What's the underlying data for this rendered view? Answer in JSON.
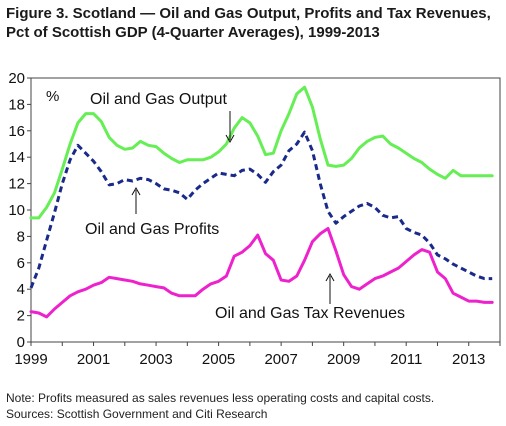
{
  "figure": {
    "title": "Figure 3. Scotland — Oil and Gas Output, Profits and Tax Revenues, Pct of Scottish GDP (4-Quarter Averages), 1999-2013",
    "note": "Note: Profits measured as sales revenues less operating costs and capital costs.",
    "sources": "Sources: Scottish Government and Citi Research"
  },
  "chart_data": {
    "type": "line",
    "ylabel": "%",
    "xlim": [
      1999,
      2014
    ],
    "ylim": [
      0,
      20
    ],
    "yticks": [
      0,
      2,
      4,
      6,
      8,
      10,
      12,
      14,
      16,
      18,
      20
    ],
    "xticks": [
      1999,
      2001,
      2003,
      2005,
      2007,
      2009,
      2011,
      2013
    ],
    "grid": false,
    "series": [
      {
        "name": "Oil and Gas Output",
        "color": "#66ee55",
        "style": "solid",
        "x": [
          1999.0,
          1999.25,
          1999.5,
          1999.75,
          2000.0,
          2000.25,
          2000.5,
          2000.75,
          2001.0,
          2001.25,
          2001.5,
          2001.75,
          2002.0,
          2002.25,
          2002.5,
          2002.75,
          2003.0,
          2003.25,
          2003.5,
          2003.75,
          2004.0,
          2004.25,
          2004.5,
          2004.75,
          2005.0,
          2005.25,
          2005.5,
          2005.75,
          2006.0,
          2006.25,
          2006.5,
          2006.75,
          2007.0,
          2007.25,
          2007.5,
          2007.75,
          2008.0,
          2008.25,
          2008.5,
          2008.75,
          2009.0,
          2009.25,
          2009.5,
          2009.75,
          2010.0,
          2010.25,
          2010.5,
          2010.75,
          2011.0,
          2011.25,
          2011.5,
          2011.75,
          2012.0,
          2012.25,
          2012.5,
          2012.75,
          2013.0,
          2013.25,
          2013.5,
          2013.75
        ],
        "values": [
          9.4,
          9.4,
          10.2,
          11.3,
          13.1,
          15.0,
          16.6,
          17.3,
          17.3,
          16.7,
          15.5,
          14.9,
          14.6,
          14.7,
          15.2,
          14.9,
          14.8,
          14.3,
          13.9,
          13.6,
          13.8,
          13.8,
          13.8,
          14.0,
          14.4,
          15.0,
          16.2,
          17.0,
          16.6,
          15.6,
          14.2,
          14.3,
          16.0,
          17.3,
          18.8,
          19.3,
          17.8,
          15.4,
          13.4,
          13.3,
          13.4,
          13.9,
          14.7,
          15.2,
          15.5,
          15.6,
          15.0,
          14.7,
          14.3,
          13.9,
          13.6,
          13.1,
          12.7,
          12.4,
          13.0,
          12.6,
          12.6,
          12.6,
          12.6,
          12.6
        ]
      },
      {
        "name": "Oil and Gas Profits",
        "color": "#1a2a8a",
        "style": "dashed",
        "x": [
          1999.0,
          1999.25,
          1999.5,
          1999.75,
          2000.0,
          2000.25,
          2000.5,
          2000.75,
          2001.0,
          2001.25,
          2001.5,
          2001.75,
          2002.0,
          2002.25,
          2002.5,
          2002.75,
          2003.0,
          2003.25,
          2003.5,
          2003.75,
          2004.0,
          2004.25,
          2004.5,
          2004.75,
          2005.0,
          2005.25,
          2005.5,
          2005.75,
          2006.0,
          2006.25,
          2006.5,
          2006.75,
          2007.0,
          2007.25,
          2007.5,
          2007.75,
          2008.0,
          2008.25,
          2008.5,
          2008.75,
          2009.0,
          2009.25,
          2009.5,
          2009.75,
          2010.0,
          2010.25,
          2010.5,
          2010.75,
          2011.0,
          2011.25,
          2011.5,
          2011.75,
          2012.0,
          2012.25,
          2012.5,
          2012.75,
          2013.0,
          2013.25,
          2013.5,
          2013.75
        ],
        "values": [
          4.1,
          5.6,
          7.7,
          9.8,
          12.0,
          13.8,
          14.9,
          14.3,
          13.7,
          12.9,
          11.9,
          12.0,
          12.3,
          12.2,
          12.4,
          12.3,
          12.0,
          11.6,
          11.5,
          11.3,
          10.8,
          11.5,
          12.0,
          12.4,
          12.8,
          12.7,
          12.6,
          13.0,
          13.1,
          12.7,
          12.1,
          12.9,
          13.4,
          14.5,
          15.0,
          15.9,
          14.5,
          12.0,
          9.9,
          9.0,
          9.5,
          9.9,
          10.3,
          10.5,
          10.2,
          9.6,
          9.4,
          9.5,
          8.6,
          8.3,
          8.1,
          7.5,
          6.6,
          6.3,
          5.9,
          5.6,
          5.3,
          5.0,
          4.8,
          4.8
        ]
      },
      {
        "name": "Oil and Gas Tax Revenues",
        "color": "#ee22cc",
        "style": "solid",
        "x": [
          1999.0,
          1999.25,
          1999.5,
          1999.75,
          2000.0,
          2000.25,
          2000.5,
          2000.75,
          2001.0,
          2001.25,
          2001.5,
          2001.75,
          2002.0,
          2002.25,
          2002.5,
          2002.75,
          2003.0,
          2003.25,
          2003.5,
          2003.75,
          2004.0,
          2004.25,
          2004.5,
          2004.75,
          2005.0,
          2005.25,
          2005.5,
          2005.75,
          2006.0,
          2006.25,
          2006.5,
          2006.75,
          2007.0,
          2007.25,
          2007.5,
          2007.75,
          2008.0,
          2008.25,
          2008.5,
          2008.75,
          2009.0,
          2009.25,
          2009.5,
          2009.75,
          2010.0,
          2010.25,
          2010.5,
          2010.75,
          2011.0,
          2011.25,
          2011.5,
          2011.75,
          2012.0,
          2012.25,
          2012.5,
          2012.75,
          2013.0,
          2013.25,
          2013.5,
          2013.75
        ],
        "values": [
          2.3,
          2.2,
          1.9,
          2.5,
          3.0,
          3.5,
          3.8,
          4.0,
          4.3,
          4.5,
          4.9,
          4.8,
          4.7,
          4.6,
          4.4,
          4.3,
          4.2,
          4.1,
          3.7,
          3.5,
          3.5,
          3.5,
          4.0,
          4.4,
          4.6,
          5.0,
          6.5,
          6.8,
          7.3,
          8.1,
          6.7,
          6.2,
          4.7,
          4.6,
          5.0,
          6.2,
          7.6,
          8.2,
          8.6,
          6.9,
          5.1,
          4.2,
          4.0,
          4.4,
          4.8,
          5.0,
          5.3,
          5.6,
          6.1,
          6.6,
          7.0,
          6.8,
          5.3,
          4.8,
          3.7,
          3.4,
          3.1,
          3.1,
          3.0,
          3.0
        ]
      }
    ]
  }
}
